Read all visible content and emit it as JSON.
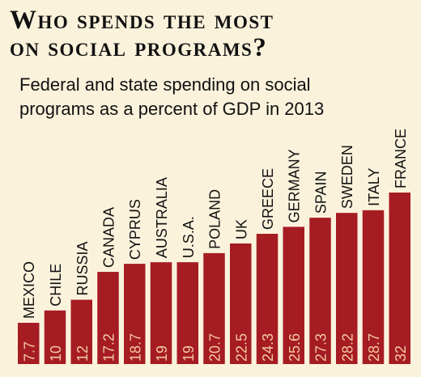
{
  "header": {
    "title_line1": "Who spends the most",
    "title_line2": "on social programs?",
    "subtitle_line1": "Federal and state spending on social",
    "subtitle_line2": "programs as a percent of GDP in 2013"
  },
  "colors": {
    "bar": "#a61c23",
    "value_text": "#f2c9a0",
    "label_text": "#111111",
    "background": "#fbf2dc"
  },
  "chart_data": {
    "type": "bar",
    "title": "Who spends the most on social programs?",
    "subtitle": "Federal and state spending on social programs as a percent of GDP in 2013",
    "categories": [
      "MEXICO",
      "CHILE",
      "RUSSIA",
      "CANADA",
      "CYPRUS",
      "AUSTRALIA",
      "U.S.A.",
      "POLAND",
      "UK",
      "GREECE",
      "GERMANY",
      "SPAIN",
      "SWEDEN",
      "ITALY",
      "FRANCE"
    ],
    "values": [
      7.7,
      10,
      12,
      17.2,
      18.7,
      19,
      19,
      20.7,
      22.5,
      24.3,
      25.6,
      27.3,
      28.2,
      28.7,
      32
    ],
    "value_labels": [
      "7.7",
      "10",
      "12",
      "17.2",
      "18.7",
      "19",
      "19",
      "20.7",
      "22.5",
      "24.3",
      "25.6",
      "27.3",
      "28.2",
      "28.7",
      "32"
    ],
    "ylim": [
      0,
      32
    ],
    "grid": false,
    "legend": "none"
  }
}
